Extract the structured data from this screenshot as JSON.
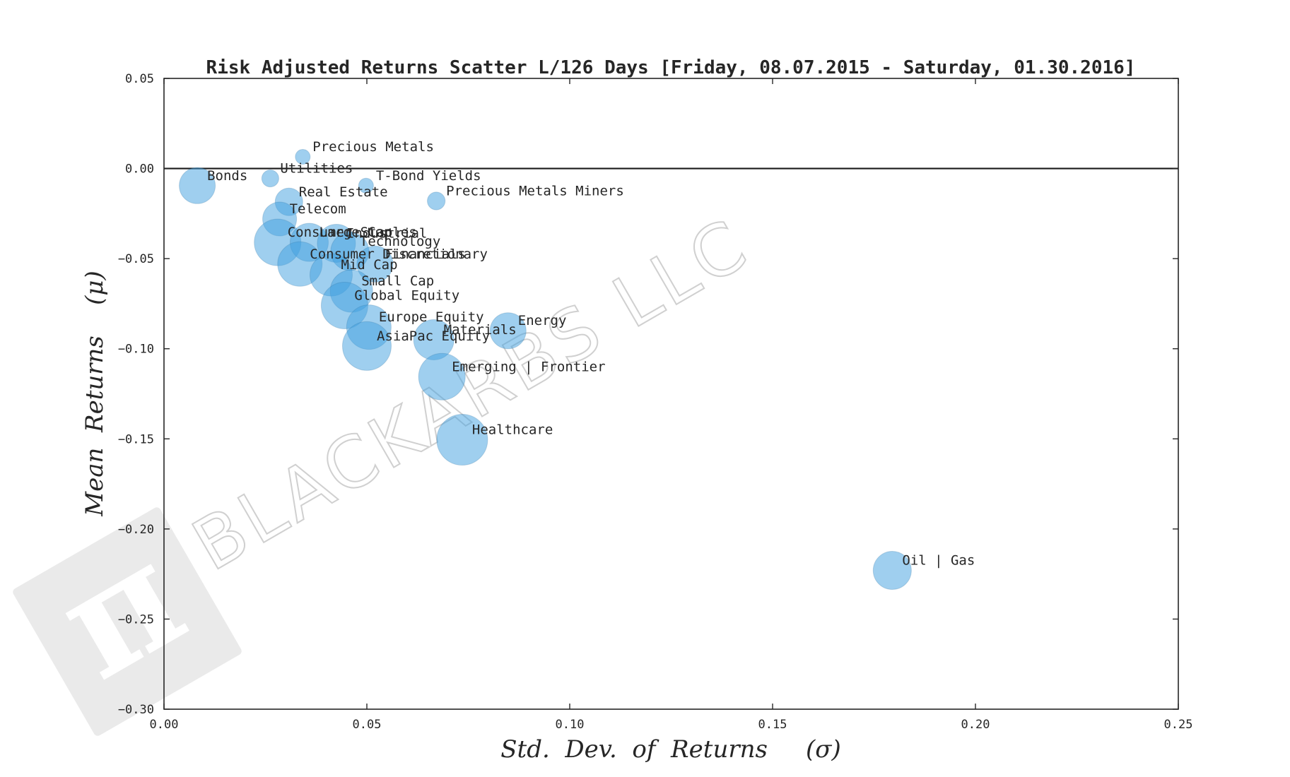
{
  "chart_data": {
    "type": "scatter",
    "title": "Risk Adjusted Returns Scatter L/126 Days [Friday, 08.07.2015 - Saturday, 01.30.2016]",
    "xlabel": "Std.  Dev.  of  Returns     (σ)",
    "ylabel": "Mean  Returns    (μ)",
    "xlim": [
      0.0,
      0.25
    ],
    "ylim": [
      -0.3,
      0.05
    ],
    "xticks": [
      "0.00",
      "0.05",
      "0.10",
      "0.15",
      "0.20",
      "0.25"
    ],
    "yticks": [
      "0.05",
      "0.00",
      "−0.05",
      "−0.10",
      "−0.15",
      "−0.20",
      "−0.25",
      "−0.30"
    ],
    "zero_line": 0.0,
    "color": "#3f9fe0",
    "points": [
      {
        "label": "Precious Metals",
        "x": 0.0342,
        "y": 0.0065,
        "size": 0.35
      },
      {
        "label": "Utilities",
        "x": 0.0262,
        "y": -0.0055,
        "size": 0.4
      },
      {
        "label": "Bonds",
        "x": 0.0082,
        "y": -0.0095,
        "size": 0.85
      },
      {
        "label": "T-Bond Yields",
        "x": 0.0498,
        "y": -0.0095,
        "size": 0.35
      },
      {
        "label": "Precious Metals Miners",
        "x": 0.0671,
        "y": -0.018,
        "size": 0.42
      },
      {
        "label": "Real Estate",
        "x": 0.0308,
        "y": -0.0185,
        "size": 0.65
      },
      {
        "label": "Telecom",
        "x": 0.0285,
        "y": -0.028,
        "size": 0.8
      },
      {
        "label": "Consumer Staples",
        "x": 0.028,
        "y": -0.041,
        "size": 1.1
      },
      {
        "label": "Large Cap",
        "x": 0.0358,
        "y": -0.041,
        "size": 0.9
      },
      {
        "label": "Industrial",
        "x": 0.0425,
        "y": -0.0415,
        "size": 0.9
      },
      {
        "label": "Technology",
        "x": 0.0458,
        "y": -0.046,
        "size": 0.9
      },
      {
        "label": "Consumer Discretionary",
        "x": 0.0335,
        "y": -0.053,
        "size": 1.05
      },
      {
        "label": "Financials",
        "x": 0.052,
        "y": -0.053,
        "size": 0.85
      },
      {
        "label": "Mid Cap",
        "x": 0.0412,
        "y": -0.059,
        "size": 1.0
      },
      {
        "label": "Small Cap",
        "x": 0.0462,
        "y": -0.068,
        "size": 1.0
      },
      {
        "label": "Global Equity",
        "x": 0.0445,
        "y": -0.076,
        "size": 1.1
      },
      {
        "label": "Europe Equity",
        "x": 0.0505,
        "y": -0.088,
        "size": 1.05
      },
      {
        "label": "Energy",
        "x": 0.0848,
        "y": -0.09,
        "size": 0.85
      },
      {
        "label": "Materials",
        "x": 0.0665,
        "y": -0.095,
        "size": 0.95
      },
      {
        "label": "AsiaPac Equity",
        "x": 0.05,
        "y": -0.0985,
        "size": 1.15
      },
      {
        "label": "Emerging | Frontier",
        "x": 0.0685,
        "y": -0.1155,
        "size": 1.1
      },
      {
        "label": "Healthcare",
        "x": 0.0735,
        "y": -0.1505,
        "size": 1.2
      },
      {
        "label": "Oil | Gas",
        "x": 0.1795,
        "y": -0.223,
        "size": 0.9
      }
    ]
  },
  "watermark": {
    "text": "BLACKARBS LLC",
    "symbol": "π"
  }
}
